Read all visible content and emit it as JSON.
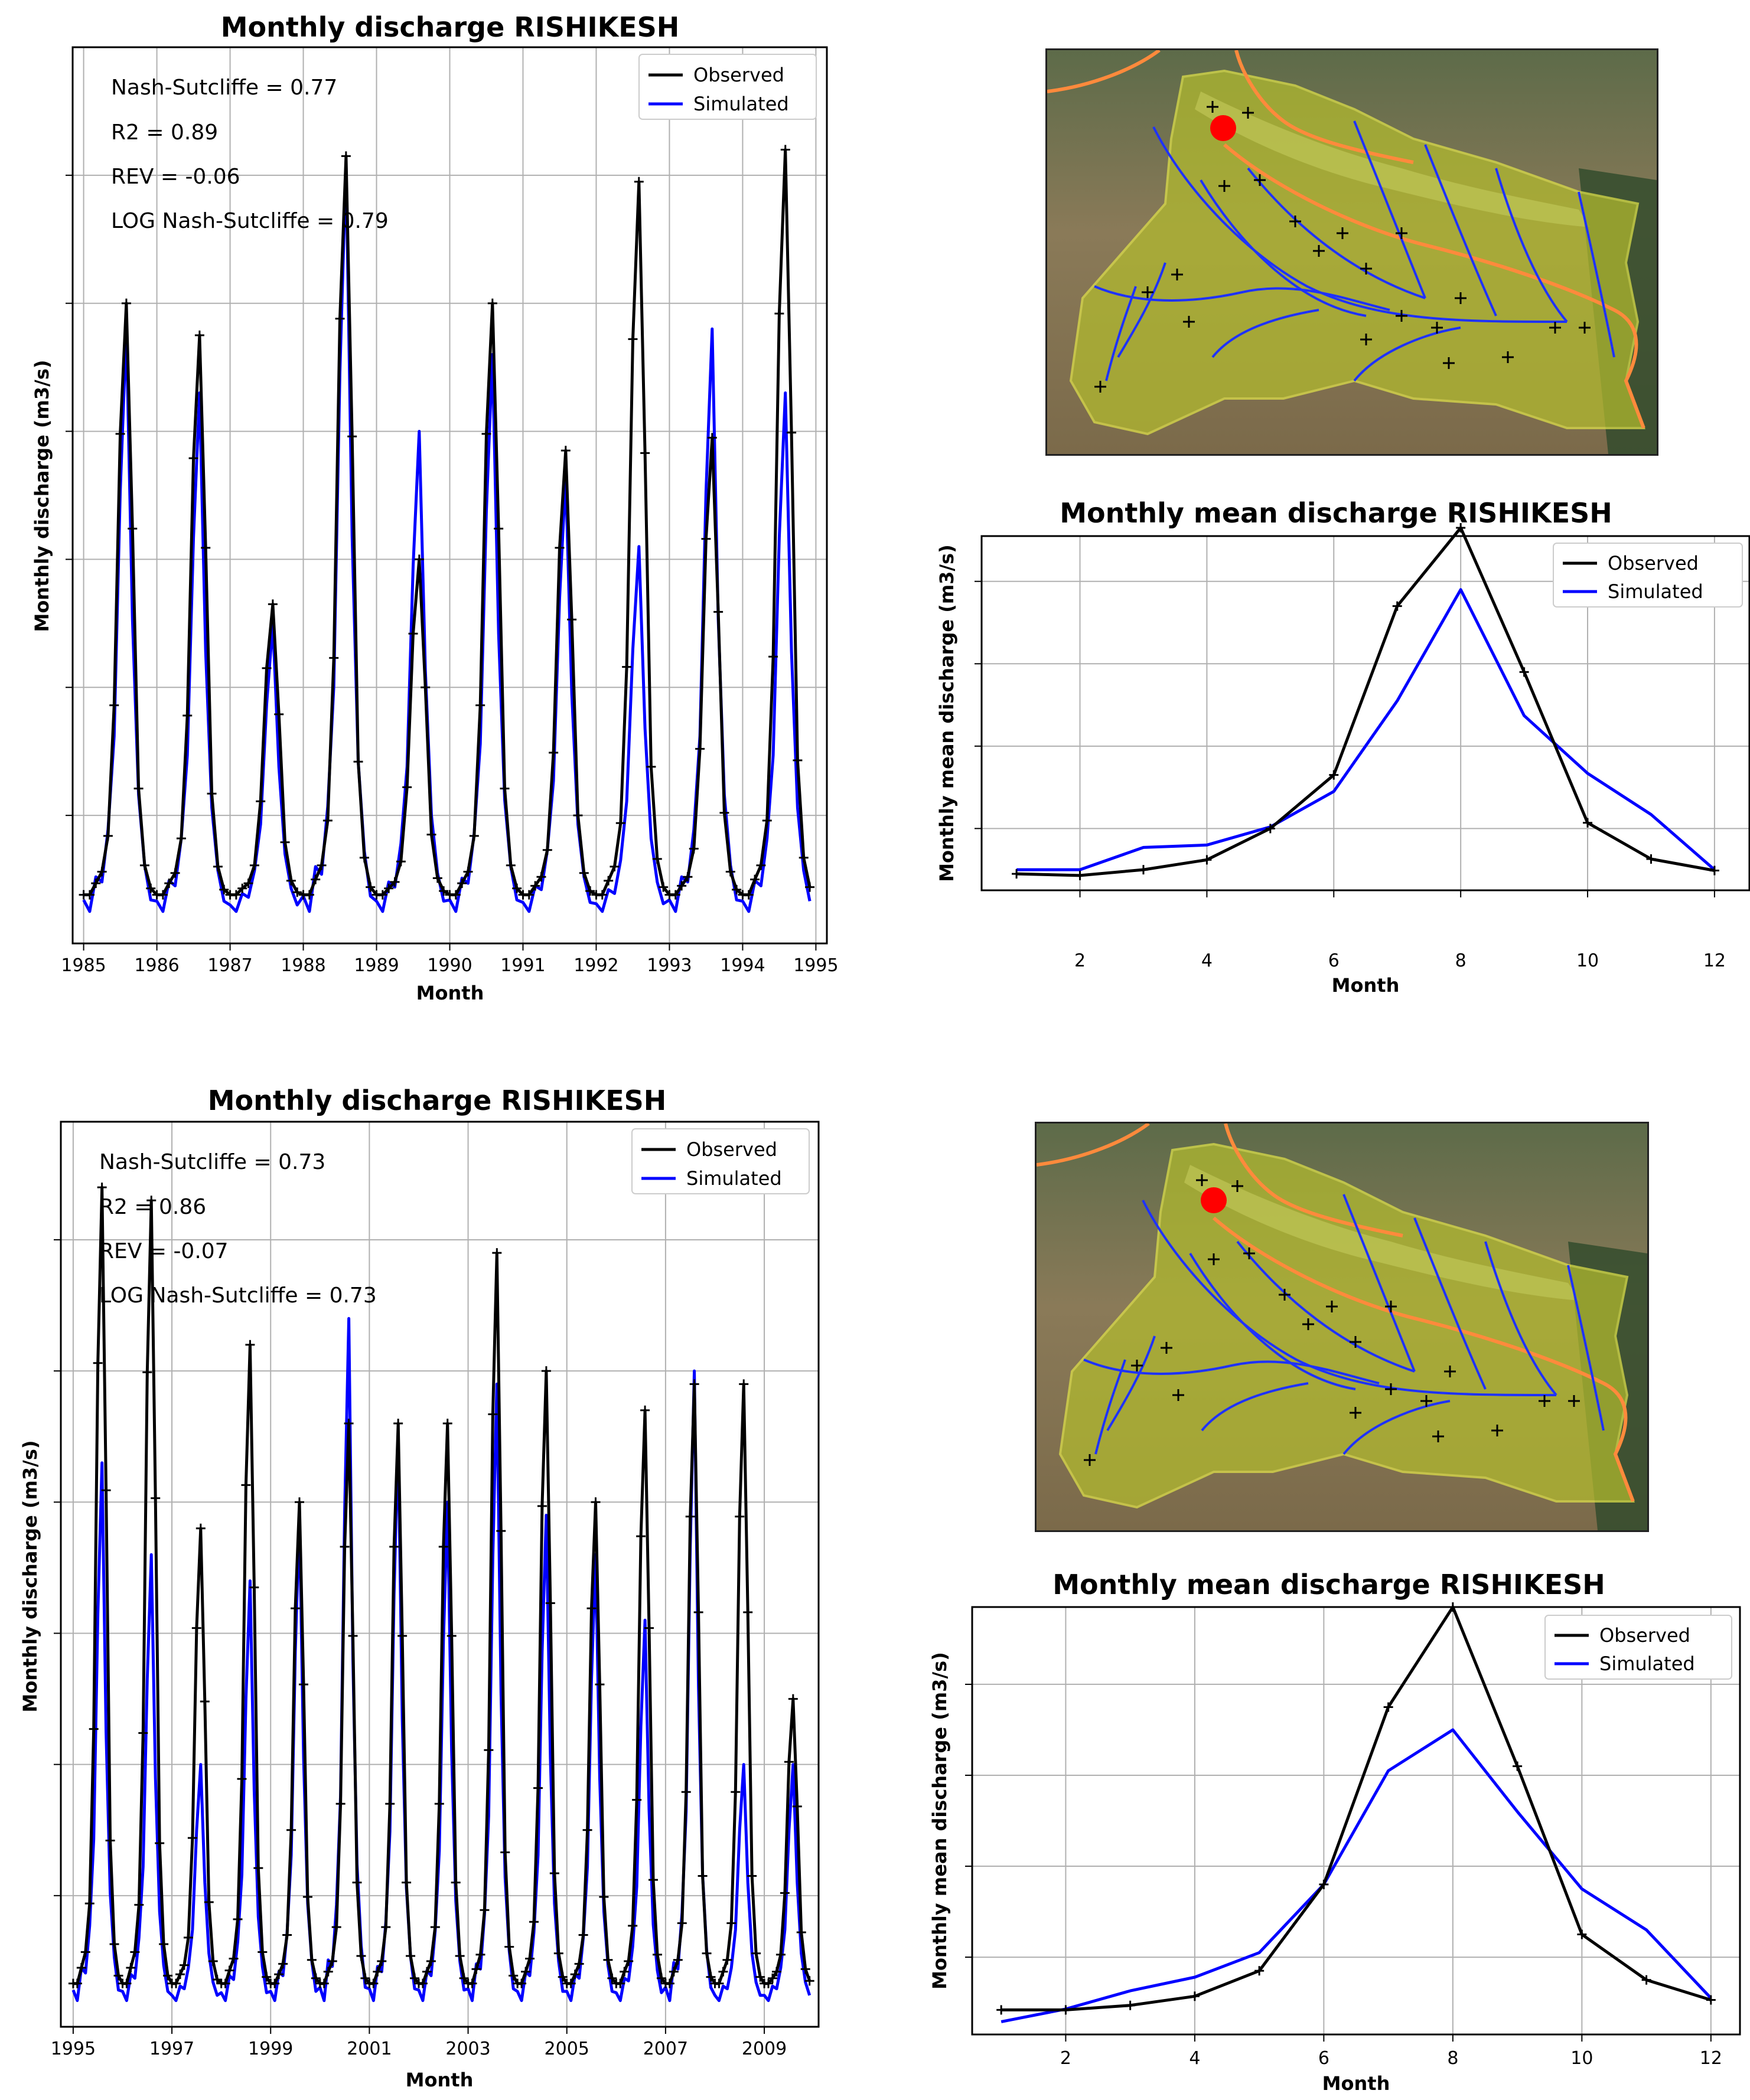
{
  "colors": {
    "observed": "#000000",
    "simulated": "#0000ff",
    "grid": "#b0b0b0",
    "station": "#ff0000"
  },
  "chart_data": [
    {
      "id": "ts1",
      "type": "line",
      "title": "Monthly discharge RISHIKESH",
      "xlabel": "Month",
      "ylabel": "Monthly discharge (m3/s)",
      "xlim": [
        1984.85,
        1995.15
      ],
      "ylim": [
        0,
        7
      ],
      "xticks": [
        1985,
        1986,
        1987,
        1988,
        1989,
        1990,
        1991,
        1992,
        1993,
        1994,
        1995
      ],
      "xtick_labels": [
        "1985",
        "1986",
        "1987",
        "1988",
        "1989",
        "1990",
        "1991",
        "1992",
        "1993",
        "1994",
        "1995"
      ],
      "ygrid": [
        1,
        2,
        3,
        4,
        5,
        6
      ],
      "start_year": 1985,
      "legend": [
        "Observed",
        "Simulated"
      ],
      "metrics": [
        "Nash-Sutcliffe = 0.77",
        "R2 = 0.89",
        "REV = -0.06",
        "LOG Nash-Sutcliffe = 0.79"
      ],
      "observed_peaks": [
        5.0,
        4.75,
        2.65,
        6.15,
        3.0,
        5.0,
        3.85,
        5.95,
        3.95,
        6.2
      ],
      "simulated_peaks": [
        4.8,
        4.3,
        2.5,
        6.1,
        4.0,
        4.6,
        3.65,
        3.1,
        4.8,
        4.3
      ],
      "obs_base": 0.38,
      "sim_base": 0.25,
      "series": [
        {
          "name": "Observed",
          "values": []
        },
        {
          "name": "Simulated",
          "values": []
        }
      ]
    },
    {
      "id": "ts2",
      "type": "line",
      "title": "Monthly discharge RISHIKESH",
      "xlabel": "Month",
      "ylabel": "Monthly discharge (m3/s)",
      "xlim": [
        1994.75,
        2010.1
      ],
      "ylim": [
        0,
        6.9
      ],
      "xticks": [
        1995,
        1997,
        1999,
        2001,
        2003,
        2005,
        2007,
        2009
      ],
      "xtick_labels": [
        "1995",
        "1997",
        "1999",
        "2001",
        "2003",
        "2005",
        "2007",
        "2009"
      ],
      "ygrid": [
        1,
        2,
        3,
        4,
        5,
        6
      ],
      "start_year": 1995,
      "legend": [
        "Observed",
        "Simulated"
      ],
      "metrics": [
        "Nash-Sutcliffe = 0.73",
        "R2 = 0.86",
        "REV = -0.07",
        "LOG Nash-Sutcliffe = 0.73"
      ],
      "observed_peaks": [
        6.4,
        6.3,
        3.8,
        5.2,
        4.0,
        4.6,
        4.6,
        4.6,
        5.9,
        5.0,
        4.0,
        4.7,
        4.9,
        4.9,
        2.5
      ],
      "simulated_peaks": [
        4.3,
        3.6,
        2.0,
        3.4,
        3.9,
        5.4,
        4.5,
        4.0,
        4.9,
        3.9,
        3.6,
        3.1,
        5.0,
        2.0,
        2.0
      ],
      "obs_base": 0.33,
      "sim_base": 0.2,
      "series": [
        {
          "name": "Observed",
          "values": []
        },
        {
          "name": "Simulated",
          "values": []
        }
      ]
    },
    {
      "id": "clim1",
      "type": "line",
      "title": "Monthly mean discharge RISHIKESH",
      "xlabel": "Month",
      "ylabel": "Monthly mean discharge (m3/s)",
      "x": [
        1,
        2,
        3,
        4,
        5,
        6,
        7,
        8,
        9,
        10,
        11,
        12
      ],
      "xlim": [
        0.45,
        12.55
      ],
      "ylim": [
        0,
        4.3
      ],
      "xticks": [
        2,
        4,
        6,
        8,
        10,
        12
      ],
      "xtick_labels": [
        "2",
        "4",
        "6",
        "8",
        "10",
        "12"
      ],
      "ygrid": [
        0.75,
        1.75,
        2.75,
        3.75
      ],
      "legend": [
        "Observed",
        "Simulated"
      ],
      "series": [
        {
          "name": "Observed",
          "values": [
            0.2,
            0.18,
            0.25,
            0.37,
            0.75,
            1.4,
            3.45,
            4.4,
            2.65,
            0.82,
            0.38,
            0.24
          ]
        },
        {
          "name": "Simulated",
          "values": [
            0.25,
            0.25,
            0.52,
            0.55,
            0.77,
            1.2,
            2.3,
            3.65,
            2.12,
            1.42,
            0.92,
            0.25
          ]
        }
      ]
    },
    {
      "id": "clim2",
      "type": "line",
      "title": "Monthly mean discharge RISHIKESH",
      "xlabel": "Month",
      "ylabel": "Monthly mean discharge (m3/s)",
      "x": [
        1,
        2,
        3,
        4,
        5,
        6,
        7,
        8,
        9,
        10,
        11,
        12
      ],
      "xlim": [
        0.55,
        12.45
      ],
      "ylim": [
        0,
        4.7
      ],
      "xticks": [
        2,
        4,
        6,
        8,
        10,
        12
      ],
      "xtick_labels": [
        "2",
        "4",
        "6",
        "8",
        "10",
        "12"
      ],
      "ygrid": [
        0.85,
        1.85,
        2.85,
        3.85
      ],
      "legend": [
        "Observed",
        "Simulated"
      ],
      "series": [
        {
          "name": "Observed",
          "values": [
            0.27,
            0.27,
            0.32,
            0.42,
            0.7,
            1.65,
            3.6,
            4.7,
            2.95,
            1.1,
            0.6,
            0.38
          ]
        },
        {
          "name": "Simulated",
          "values": [
            0.14,
            0.28,
            0.48,
            0.63,
            0.9,
            1.65,
            2.9,
            3.35,
            2.45,
            1.6,
            1.15,
            0.4
          ]
        }
      ]
    }
  ]
}
